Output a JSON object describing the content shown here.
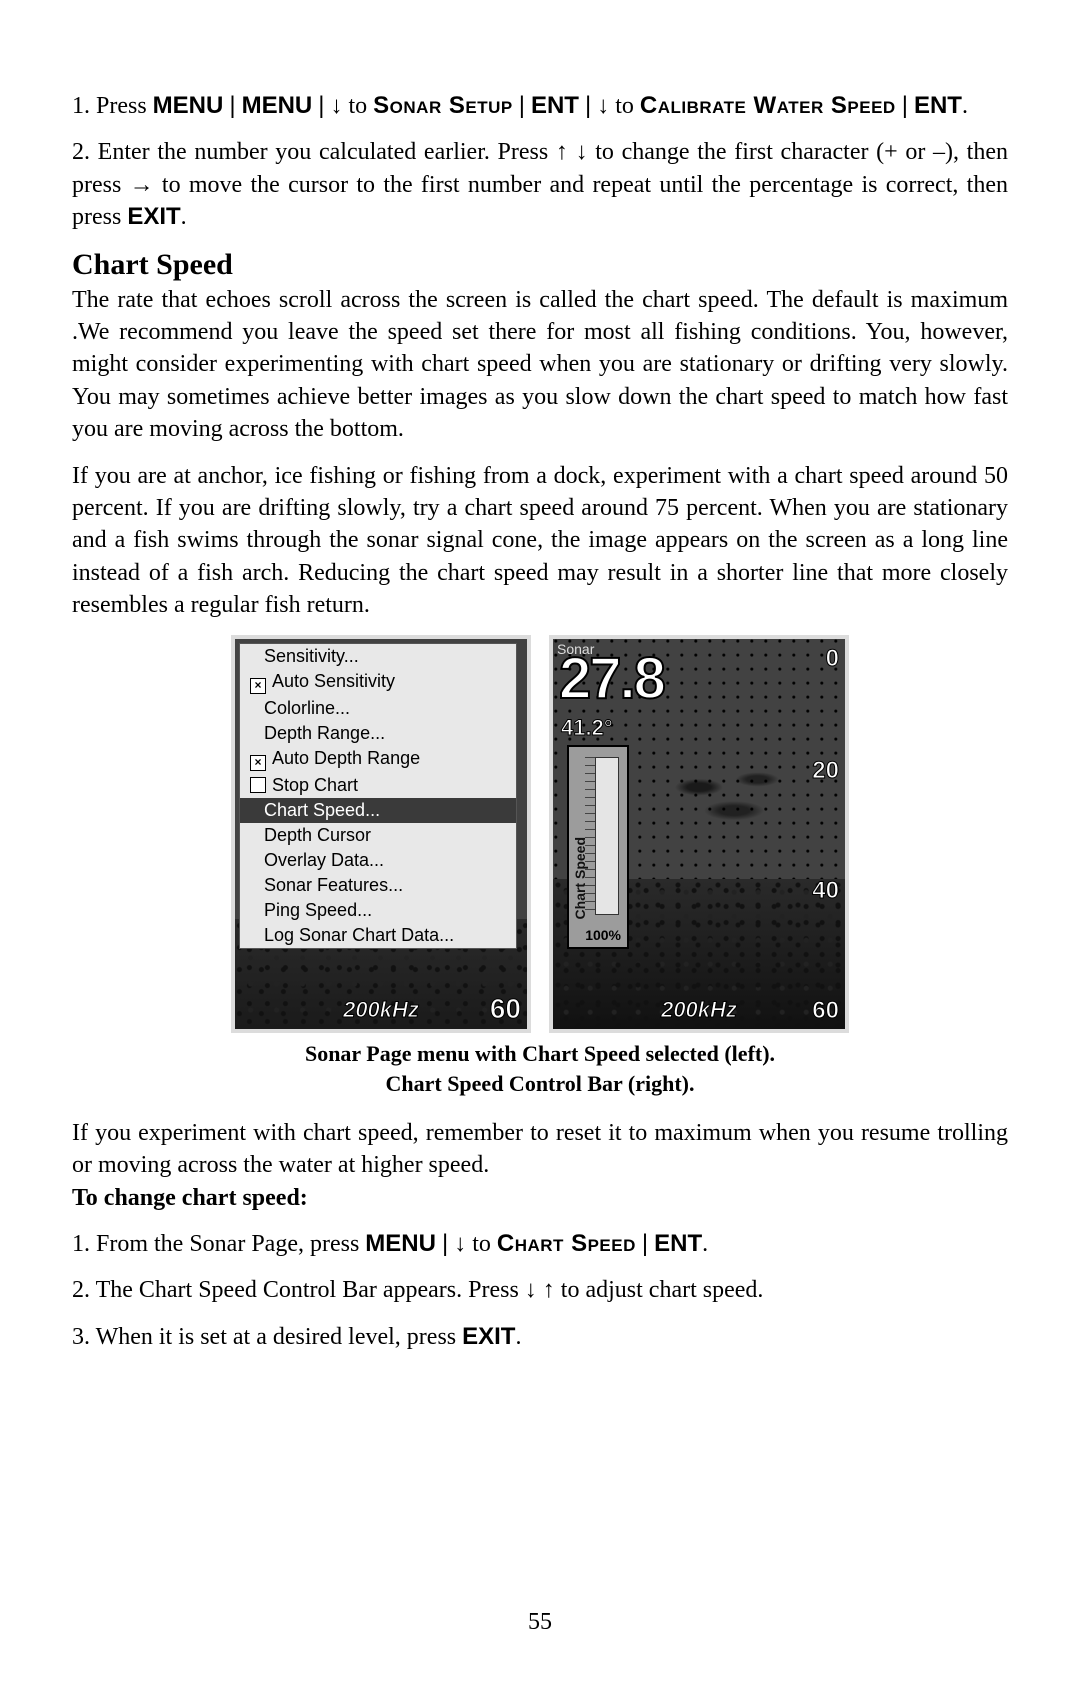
{
  "steps_top": {
    "step1_prefix": "1. Press ",
    "step1_menu": "MENU",
    "step1_to1": " to ",
    "step1_sonar": "Sonar Setup",
    "step1_ent": "ENT",
    "step1_to2": " to ",
    "step1_calibrate": "Calibrate Water Speed",
    "step2": "2. Enter the number you calculated earlier. Press ↑ ↓ to change the first character (+ or –), then press → to move the cursor to the first number and repeat until the percentage is correct, then press ",
    "step2_exit": "EXIT",
    "step2_end": "."
  },
  "section_title": "Chart Speed",
  "para1": "The rate that echoes scroll across the screen is called the chart speed. The default is maximum .We recommend you leave the speed set there for most all fishing conditions. You, however, might consider experimenting with chart speed when you are stationary or drifting very slowly. You may sometimes achieve better images as you slow down the chart speed to match how fast you are moving across the bottom.",
  "para2": "If you are at anchor, ice fishing or fishing from a dock, experiment with a chart speed around 50 percent. If you are drifting slowly, try a chart speed around 75 percent. When you are stationary and a fish swims through the sonar signal cone, the image appears on the screen as a long line instead of a fish arch. Reducing the chart speed may result in a shorter line that more closely resembles a regular fish return.",
  "left_screen": {
    "menu": [
      {
        "label": "Sensitivity...",
        "checkbox": null,
        "hl": false
      },
      {
        "label": "Auto Sensitivity",
        "checkbox": "x",
        "hl": false
      },
      {
        "label": "Colorline...",
        "checkbox": null,
        "hl": false
      },
      {
        "label": "Depth Range...",
        "checkbox": null,
        "hl": false
      },
      {
        "label": "Auto Depth Range",
        "checkbox": "x",
        "hl": false
      },
      {
        "label": "Stop Chart",
        "checkbox": "",
        "hl": false
      },
      {
        "label": "Chart Speed...",
        "checkbox": null,
        "hl": true
      },
      {
        "label": "Depth Cursor",
        "checkbox": null,
        "hl": false
      },
      {
        "label": "Overlay Data...",
        "checkbox": null,
        "hl": false
      },
      {
        "label": "Sonar Features...",
        "checkbox": null,
        "hl": false
      },
      {
        "label": "Ping Speed...",
        "checkbox": null,
        "hl": false
      },
      {
        "label": "Log Sonar Chart Data...",
        "checkbox": null,
        "hl": false
      }
    ],
    "depth_bottom": "60",
    "freq": "200kHz"
  },
  "right_screen": {
    "title": "Sonar",
    "depth": "27.8",
    "temp": "41.2°",
    "ticks": {
      "t0": "0",
      "t20": "20",
      "t40": "40",
      "t60": "60"
    },
    "speedbar": {
      "label": "Chart Speed",
      "pct": "100%"
    },
    "freq": "200kHz"
  },
  "caption_line1": "Sonar Page menu with Chart Speed selected (left).",
  "caption_line2": "Chart Speed Control Bar (right).",
  "para3_a": "If you experiment with chart speed, remember to reset it to maximum when you resume trolling or moving across the water at higher speed. ",
  "para3_b": "To change chart speed:",
  "steps_bottom": {
    "s1_a": "1. From the Sonar Page, press ",
    "s1_menu": "MENU",
    "s1_to": " to ",
    "s1_cs": "Chart Speed",
    "s1_ent": "ENT",
    "s1_end": ".",
    "s2": "2. The Chart Speed Control Bar appears. Press ↓ ↑ to adjust chart speed.",
    "s3_a": "3. When it is set at a desired level, press ",
    "s3_exit": "EXIT",
    "s3_end": "."
  },
  "page_number": "55"
}
